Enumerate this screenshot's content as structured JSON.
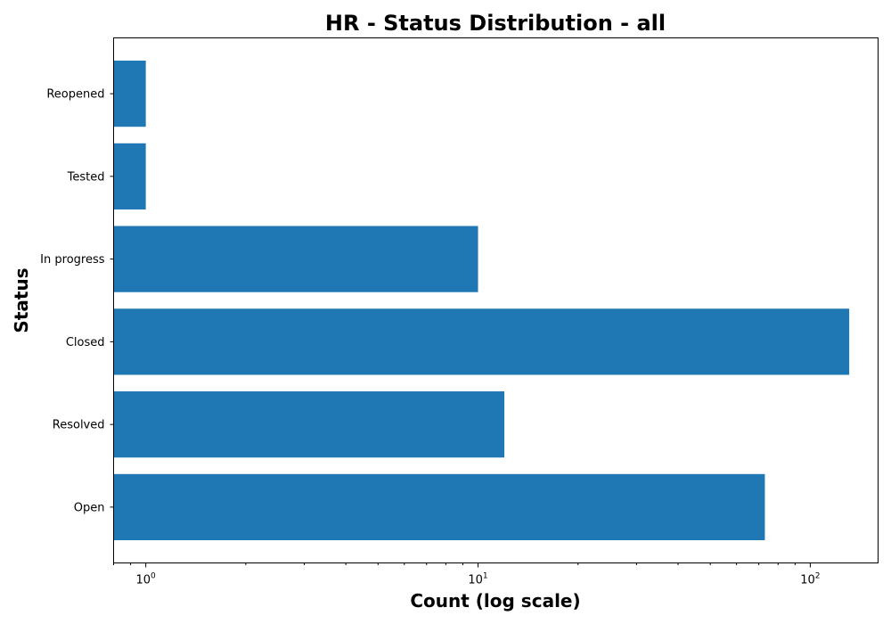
{
  "chart_data": {
    "type": "bar",
    "orientation": "horizontal",
    "title": "HR - Status Distribution - all",
    "xlabel": "Count (log scale)",
    "ylabel": "Status",
    "x_scale": "log",
    "xlim": [
      0.8,
      160
    ],
    "x_ticks": [
      {
        "value": 1,
        "base": "10",
        "exponent": "0"
      },
      {
        "value": 10,
        "base": "10",
        "exponent": "1"
      },
      {
        "value": 100,
        "base": "10",
        "exponent": "2"
      }
    ],
    "categories": [
      "Open",
      "Resolved",
      "Closed",
      "In progress",
      "Tested",
      "Reopened"
    ],
    "values": [
      73,
      12,
      131,
      10,
      1,
      1
    ],
    "bar_color": "#1f77b4",
    "grid": false,
    "legend": "none"
  }
}
